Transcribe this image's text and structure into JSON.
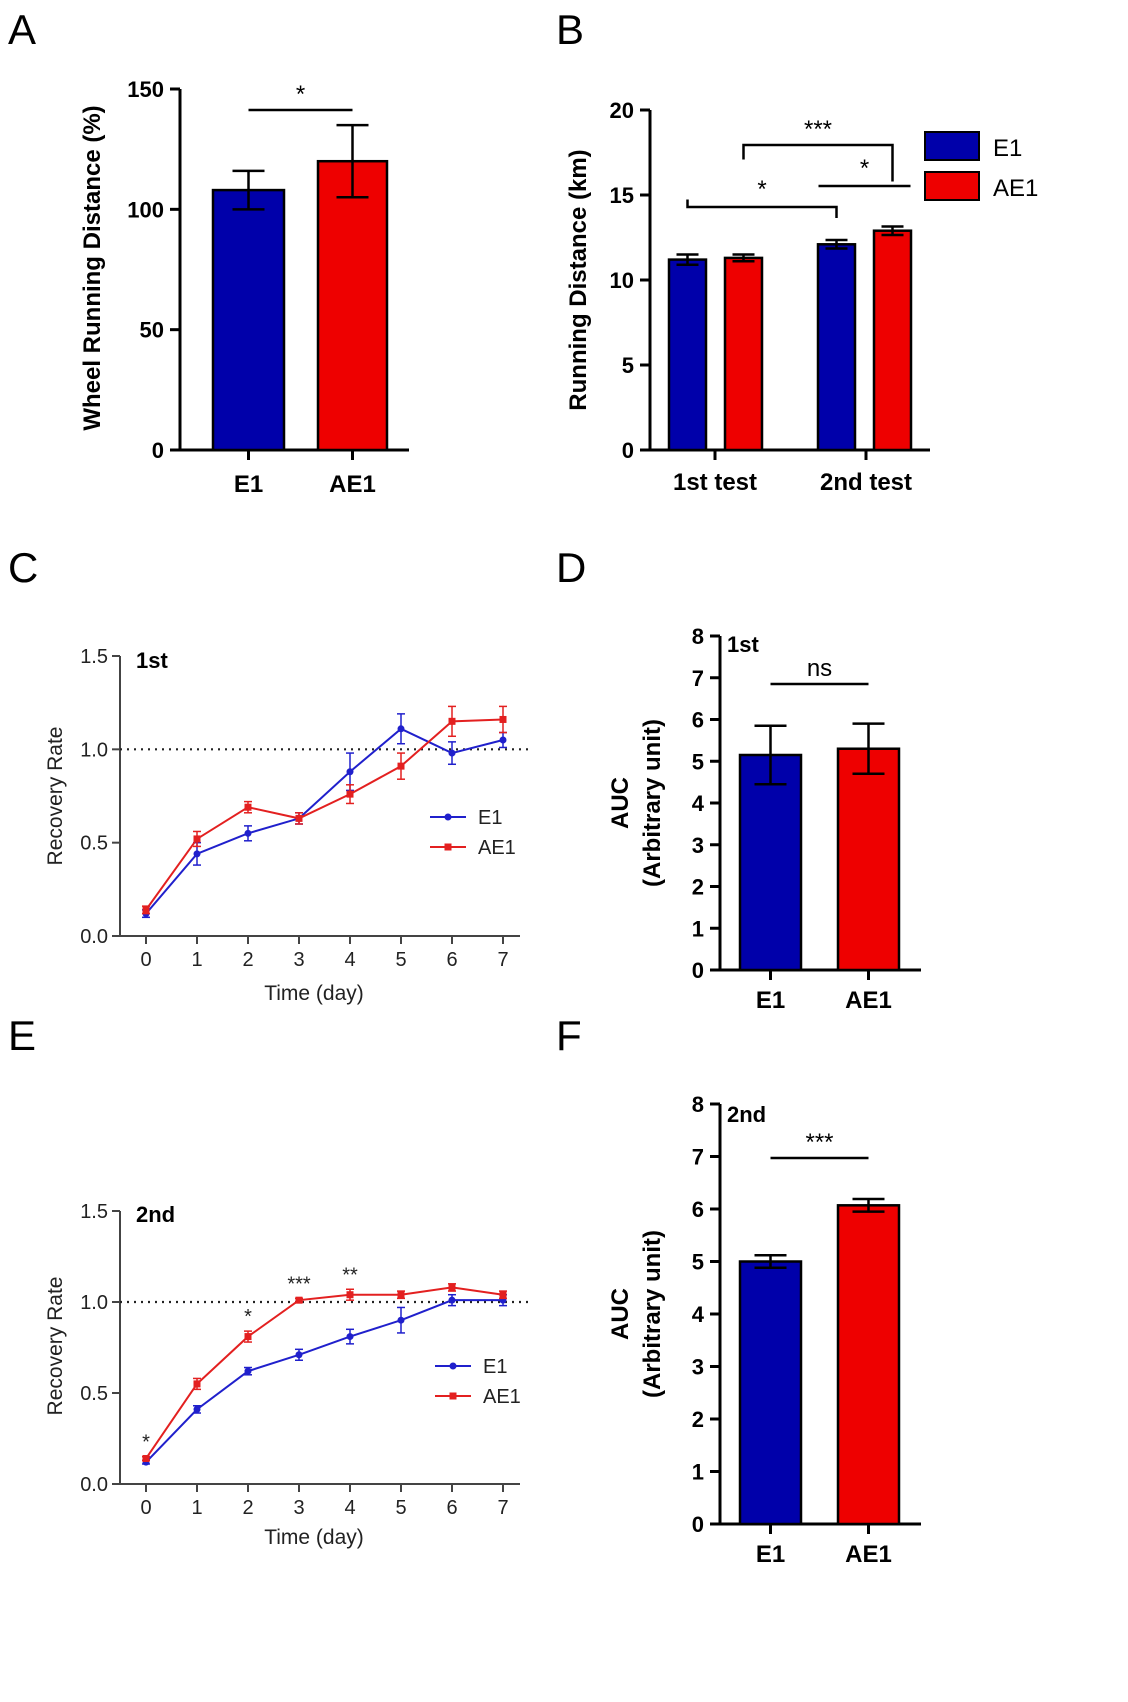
{
  "panels": [
    {
      "letter": "A",
      "chart_data": {
        "type": "bar",
        "categories": [
          "E1",
          "AE1"
        ],
        "values": [
          108,
          120
        ],
        "errors": [
          8,
          15
        ],
        "colors": [
          "#0000aa",
          "#ee0000"
        ],
        "ylabel": "Wheel Running Distance (%)",
        "ylim": [
          0,
          150
        ],
        "yticks": [
          "0",
          "50",
          "100",
          "150"
        ],
        "significance": [
          {
            "from": 0,
            "to": 1,
            "label": "*"
          }
        ]
      }
    },
    {
      "letter": "B",
      "chart_data": {
        "type": "bar",
        "categories": [
          "1st test",
          "2nd test"
        ],
        "series": [
          {
            "name": "E1",
            "color": "#0000aa",
            "values": [
              11.2,
              12.1
            ],
            "errors": [
              0.3,
              0.25
            ]
          },
          {
            "name": "AE1",
            "color": "#ee0000",
            "values": [
              11.3,
              12.9
            ],
            "errors": [
              0.2,
              0.25
            ]
          }
        ],
        "ylabel": "Running Distance (km)",
        "ylim": [
          0,
          20
        ],
        "yticks": [
          "0",
          "5",
          "10",
          "15",
          "20"
        ],
        "legend": "top-right",
        "significance": [
          {
            "label": "***",
            "between": "AE1 1st test – AE1 2nd test"
          },
          {
            "label": "*",
            "between": "E1 2nd test – AE1 2nd test"
          },
          {
            "label": "*",
            "between": "E1 1st test – E1 2nd test"
          }
        ]
      }
    },
    {
      "letter": "C",
      "chart_data": {
        "type": "line",
        "annotation": "1st",
        "x": [
          0,
          1,
          2,
          3,
          4,
          5,
          6,
          7
        ],
        "series": [
          {
            "name": "E1",
            "color": "#2020cc",
            "values": [
              0.12,
              0.44,
              0.55,
              0.63,
              0.88,
              1.11,
              0.98,
              1.05
            ],
            "errors": [
              0.02,
              0.06,
              0.04,
              0.03,
              0.1,
              0.08,
              0.06,
              0.04
            ]
          },
          {
            "name": "AE1",
            "color": "#e32020",
            "values": [
              0.14,
              0.52,
              0.69,
              0.63,
              0.76,
              0.91,
              1.15,
              1.16
            ],
            "errors": [
              0.02,
              0.04,
              0.03,
              0.03,
              0.05,
              0.07,
              0.08,
              0.07
            ]
          }
        ],
        "reference_line": 1.0,
        "xlabel": "Time (day)",
        "ylabel": "Recovery Rate",
        "xlim": [
          0,
          7
        ],
        "ylim": [
          0,
          1.5
        ],
        "xticks": [
          "0",
          "1",
          "2",
          "3",
          "4",
          "5",
          "6",
          "7"
        ],
        "yticks": [
          "0.0",
          "0.5",
          "1.0",
          "1.5"
        ],
        "legend": "center-right"
      }
    },
    {
      "letter": "D",
      "chart_data": {
        "type": "bar",
        "annotation": "1st",
        "categories": [
          "E1",
          "AE1"
        ],
        "values": [
          5.15,
          5.3
        ],
        "errors": [
          0.7,
          0.6
        ],
        "colors": [
          "#0000aa",
          "#ee0000"
        ],
        "ylabel_lines": [
          "AUC",
          "(Arbitrary unit)"
        ],
        "ylim": [
          0,
          8
        ],
        "yticks": [
          "0",
          "1",
          "2",
          "3",
          "4",
          "5",
          "6",
          "7",
          "8"
        ],
        "significance": [
          {
            "from": 0,
            "to": 1,
            "label": "ns"
          }
        ]
      }
    },
    {
      "letter": "E",
      "chart_data": {
        "type": "line",
        "annotation": "2nd",
        "x": [
          0,
          1,
          2,
          3,
          4,
          5,
          6,
          7
        ],
        "series": [
          {
            "name": "E1",
            "color": "#2020cc",
            "values": [
              0.12,
              0.41,
              0.62,
              0.71,
              0.81,
              0.9,
              1.01,
              1.01
            ],
            "errors": [
              0.01,
              0.02,
              0.02,
              0.03,
              0.04,
              0.07,
              0.03,
              0.03
            ]
          },
          {
            "name": "AE1",
            "color": "#e32020",
            "values": [
              0.14,
              0.55,
              0.81,
              1.01,
              1.04,
              1.04,
              1.08,
              1.04
            ],
            "errors": [
              0.01,
              0.03,
              0.03,
              0.01,
              0.03,
              0.02,
              0.02,
              0.02
            ]
          }
        ],
        "reference_line": 1.0,
        "xlabel": "Time (day)",
        "ylabel": "Recovery Rate",
        "xlim": [
          0,
          7
        ],
        "ylim": [
          0,
          1.5
        ],
        "xticks": [
          "0",
          "1",
          "2",
          "3",
          "4",
          "5",
          "6",
          "7"
        ],
        "yticks": [
          "0.0",
          "0.5",
          "1.0",
          "1.5"
        ],
        "legend": "center-right",
        "point_annotations": [
          {
            "x": 0,
            "label": "*"
          },
          {
            "x": 2,
            "label": "*"
          },
          {
            "x": 3,
            "label": "***"
          },
          {
            "x": 4,
            "label": "**"
          }
        ]
      }
    },
    {
      "letter": "F",
      "chart_data": {
        "type": "bar",
        "annotation": "2nd",
        "categories": [
          "E1",
          "AE1"
        ],
        "values": [
          5.0,
          6.07
        ],
        "errors": [
          0.12,
          0.12
        ],
        "colors": [
          "#0000aa",
          "#ee0000"
        ],
        "ylabel_lines": [
          "AUC",
          "(Arbitrary unit)"
        ],
        "ylim": [
          0,
          8
        ],
        "yticks": [
          "0",
          "1",
          "2",
          "3",
          "4",
          "5",
          "6",
          "7",
          "8"
        ],
        "significance": [
          {
            "from": 0,
            "to": 1,
            "label": "***"
          }
        ]
      }
    }
  ]
}
